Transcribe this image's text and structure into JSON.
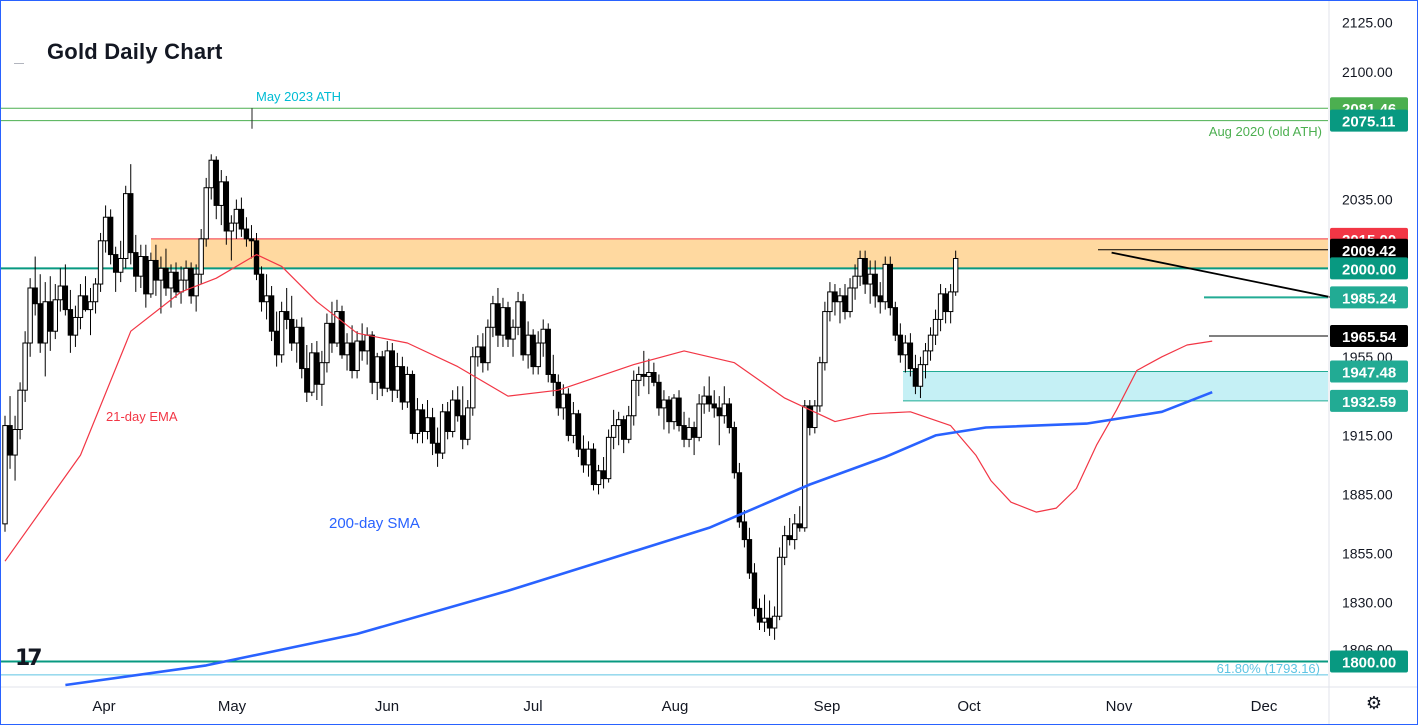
{
  "title": "Gold Daily Chart",
  "logo_text": "17",
  "settings_icon": "gear-icon",
  "chart_data": {
    "type": "candlestick",
    "ylim": [
      1787,
      2136
    ],
    "ticks": [
      {
        "value": 2125,
        "label": "2125.00"
      },
      {
        "value": 2100,
        "label": "2100.00"
      },
      {
        "value": 2035,
        "label": "2035.00"
      },
      {
        "value": 1955,
        "label": "1955.00"
      },
      {
        "value": 1915,
        "label": "1915.00"
      },
      {
        "value": 1885,
        "label": "1885.00"
      },
      {
        "value": 1855,
        "label": "1855.00"
      },
      {
        "value": 1830,
        "label": "1830.00"
      },
      {
        "value": 1806,
        "label": "1806.00"
      }
    ],
    "months": [
      "Apr",
      "May",
      "Jun",
      "Jul",
      "Aug",
      "Sep",
      "Oct",
      "Nov",
      "Dec"
    ],
    "price_labels": [
      {
        "value": 2081.46,
        "label": "2081.46",
        "bg": "#4caf50",
        "fg": "#ffffff"
      },
      {
        "value": 2075.11,
        "label": "2075.11",
        "bg": "#089981",
        "fg": "#ffffff"
      },
      {
        "value": 2015.0,
        "label": "2015.00",
        "bg": "#f23645",
        "fg": "#ffffff"
      },
      {
        "value": 2009.42,
        "label": "2009.42",
        "bg": "#000000",
        "fg": "#ffffff"
      },
      {
        "value": 2000.0,
        "label": "2000.00",
        "bg": "#089981",
        "fg": "#ffffff"
      },
      {
        "value": 1985.24,
        "label": "1985.24",
        "bg": "#22ab94",
        "fg": "#ffffff"
      },
      {
        "value": 1965.54,
        "label": "1965.54",
        "bg": "#000000",
        "fg": "#ffffff"
      },
      {
        "value": 1947.48,
        "label": "1947.48",
        "bg": "#22ab94",
        "fg": "#ffffff"
      },
      {
        "value": 1932.59,
        "label": "1932.59",
        "bg": "#22ab94",
        "fg": "#ffffff"
      },
      {
        "value": 1800.0,
        "label": "1800.00",
        "bg": "#089981",
        "fg": "#ffffff"
      }
    ],
    "annotations": [
      {
        "text": "May 2023 ATH",
        "color": "#00bcd4"
      },
      {
        "text": "Aug 2020 (old ATH)",
        "color": "#4caf50"
      },
      {
        "text": "21-day EMA",
        "color": "#f23645"
      },
      {
        "text": "200-day SMA",
        "color": "#2962ff"
      },
      {
        "text": "61.80% (1793.16)",
        "color": "#5dc4e3"
      }
    ],
    "zones": [
      {
        "from": 2000.0,
        "to": 2015.0,
        "color": "#ffcc80",
        "border": "#f23645"
      },
      {
        "from": 1932.59,
        "to": 1947.48,
        "color": "#b2ebf2",
        "border": "#22ab94"
      }
    ],
    "levels": [
      {
        "value": 2081.46,
        "color": "#4caf50"
      },
      {
        "value": 2075.11,
        "color": "#4caf50"
      },
      {
        "value": 2000.0,
        "color": "#089981"
      },
      {
        "value": 1800.0,
        "color": "#089981"
      },
      {
        "value": 1793.16,
        "color": "#5dc4e3"
      }
    ],
    "ohlc": [
      [
        1870,
        1925,
        1866,
        1920
      ],
      [
        1920,
        1935,
        1898,
        1905
      ],
      [
        1905,
        1925,
        1892,
        1918
      ],
      [
        1918,
        1942,
        1913,
        1938
      ],
      [
        1938,
        1968,
        1932,
        1962
      ],
      [
        1962,
        1995,
        1955,
        1990
      ],
      [
        1990,
        2006,
        1976,
        1982
      ],
      [
        1982,
        1997,
        1957,
        1962
      ],
      [
        1962,
        1993,
        1945,
        1983
      ],
      [
        1983,
        1996,
        1958,
        1968
      ],
      [
        1968,
        1992,
        1964,
        1984
      ],
      [
        1984,
        2000,
        1978,
        1991
      ],
      [
        1991,
        2002,
        1976,
        1979
      ],
      [
        1979,
        1989,
        1957,
        1966
      ],
      [
        1966,
        1981,
        1960,
        1975
      ],
      [
        1975,
        1992,
        1969,
        1986
      ],
      [
        1986,
        1996,
        1978,
        1979
      ],
      [
        1979,
        1990,
        1966,
        1983
      ],
      [
        1983,
        1995,
        1977,
        1992
      ],
      [
        1992,
        2018,
        1988,
        2014
      ],
      [
        2014,
        2032,
        2008,
        2026
      ],
      [
        2026,
        2030,
        2002,
        2007
      ],
      [
        2007,
        2011,
        1988,
        1998
      ],
      [
        1998,
        2014,
        1993,
        2005
      ],
      [
        2005,
        2042,
        2000,
        2038
      ],
      [
        2038,
        2053,
        2002,
        2008
      ],
      [
        2008,
        2017,
        1988,
        1996
      ],
      [
        1996,
        2012,
        1990,
        2006
      ],
      [
        2006,
        2012,
        1980,
        1987
      ],
      [
        1987,
        2008,
        1985,
        2004
      ],
      [
        2004,
        2012,
        1986,
        1994
      ],
      [
        1994,
        2006,
        1977,
        2000
      ],
      [
        2000,
        2010,
        1986,
        1990
      ],
      [
        1990,
        2002,
        1980,
        1998
      ],
      [
        1998,
        2003,
        1985,
        1988
      ],
      [
        1988,
        2001,
        1982,
        1994
      ],
      [
        1994,
        2004,
        1989,
        2000
      ],
      [
        2000,
        2003,
        1982,
        1986
      ],
      [
        1986,
        2002,
        1978,
        1997
      ],
      [
        1997,
        2020,
        1992,
        2015
      ],
      [
        2015,
        2046,
        2011,
        2041
      ],
      [
        2041,
        2058,
        2035,
        2055
      ],
      [
        2055,
        2057,
        2025,
        2032
      ],
      [
        2032,
        2050,
        2022,
        2044
      ],
      [
        2044,
        2047,
        2012,
        2019
      ],
      [
        2019,
        2027,
        2004,
        2023
      ],
      [
        2023,
        2035,
        2015,
        2030
      ],
      [
        2030,
        2036,
        2016,
        2020
      ],
      [
        2020,
        2026,
        2011,
        2015
      ],
      [
        2015,
        2022,
        2005,
        2014
      ],
      [
        2014,
        2018,
        1994,
        1997
      ],
      [
        1997,
        2001,
        1978,
        1983
      ],
      [
        1983,
        1997,
        1974,
        1986
      ],
      [
        1986,
        1991,
        1963,
        1968
      ],
      [
        1968,
        1978,
        1950,
        1956
      ],
      [
        1956,
        1983,
        1952,
        1978
      ],
      [
        1978,
        1990,
        1969,
        1974
      ],
      [
        1974,
        1986,
        1958,
        1962
      ],
      [
        1962,
        1974,
        1952,
        1970
      ],
      [
        1970,
        1975,
        1944,
        1949
      ],
      [
        1949,
        1961,
        1932,
        1937
      ],
      [
        1937,
        1962,
        1935,
        1957
      ],
      [
        1957,
        1963,
        1933,
        1941
      ],
      [
        1941,
        1958,
        1930,
        1952
      ],
      [
        1952,
        1977,
        1947,
        1972
      ],
      [
        1972,
        1983,
        1957,
        1962
      ],
      [
        1962,
        1984,
        1960,
        1978
      ],
      [
        1978,
        1981,
        1954,
        1956
      ],
      [
        1956,
        1967,
        1948,
        1962
      ],
      [
        1962,
        1971,
        1944,
        1948
      ],
      [
        1948,
        1968,
        1944,
        1963
      ],
      [
        1963,
        1972,
        1953,
        1958
      ],
      [
        1958,
        1970,
        1951,
        1966
      ],
      [
        1966,
        1968,
        1936,
        1942
      ],
      [
        1942,
        1957,
        1933,
        1955
      ],
      [
        1955,
        1958,
        1935,
        1939
      ],
      [
        1939,
        1963,
        1937,
        1958
      ],
      [
        1958,
        1962,
        1932,
        1938
      ],
      [
        1938,
        1957,
        1934,
        1950
      ],
      [
        1950,
        1955,
        1928,
        1932
      ],
      [
        1932,
        1950,
        1929,
        1946
      ],
      [
        1946,
        1948,
        1913,
        1916
      ],
      [
        1916,
        1934,
        1911,
        1928
      ],
      [
        1928,
        1931,
        1911,
        1917
      ],
      [
        1917,
        1933,
        1913,
        1924
      ],
      [
        1924,
        1929,
        1905,
        1911
      ],
      [
        1911,
        1919,
        1899,
        1906
      ],
      [
        1906,
        1931,
        1903,
        1927
      ],
      [
        1927,
        1932,
        1913,
        1917
      ],
      [
        1917,
        1938,
        1914,
        1933
      ],
      [
        1933,
        1940,
        1922,
        1925
      ],
      [
        1925,
        1940,
        1908,
        1913
      ],
      [
        1913,
        1933,
        1910,
        1929
      ],
      [
        1929,
        1960,
        1925,
        1955
      ],
      [
        1955,
        1966,
        1950,
        1960
      ],
      [
        1960,
        1967,
        1947,
        1952
      ],
      [
        1952,
        1974,
        1948,
        1970
      ],
      [
        1970,
        1986,
        1965,
        1982
      ],
      [
        1982,
        1990,
        1960,
        1966
      ],
      [
        1966,
        1985,
        1960,
        1980
      ],
      [
        1980,
        1983,
        1960,
        1964
      ],
      [
        1964,
        1974,
        1955,
        1970
      ],
      [
        1970,
        1988,
        1966,
        1983
      ],
      [
        1983,
        1987,
        1953,
        1956
      ],
      [
        1956,
        1973,
        1949,
        1966
      ],
      [
        1966,
        1969,
        1946,
        1950
      ],
      [
        1950,
        1968,
        1946,
        1962
      ],
      [
        1962,
        1974,
        1955,
        1969
      ],
      [
        1969,
        1972,
        1942,
        1946
      ],
      [
        1946,
        1956,
        1935,
        1942
      ],
      [
        1942,
        1946,
        1925,
        1929
      ],
      [
        1929,
        1941,
        1923,
        1936
      ],
      [
        1936,
        1939,
        1912,
        1915
      ],
      [
        1915,
        1932,
        1911,
        1926
      ],
      [
        1926,
        1928,
        1904,
        1908
      ],
      [
        1908,
        1915,
        1896,
        1900
      ],
      [
        1900,
        1912,
        1894,
        1908
      ],
      [
        1908,
        1911,
        1887,
        1890
      ],
      [
        1890,
        1900,
        1885,
        1897
      ],
      [
        1897,
        1904,
        1888,
        1893
      ],
      [
        1893,
        1918,
        1891,
        1914
      ],
      [
        1914,
        1928,
        1908,
        1920
      ],
      [
        1920,
        1927,
        1910,
        1923
      ],
      [
        1923,
        1925,
        1906,
        1913
      ],
      [
        1913,
        1930,
        1911,
        1925
      ],
      [
        1925,
        1948,
        1920,
        1943
      ],
      [
        1943,
        1950,
        1935,
        1946
      ],
      [
        1946,
        1958,
        1940,
        1945
      ],
      [
        1945,
        1954,
        1936,
        1947
      ],
      [
        1947,
        1952,
        1940,
        1942
      ],
      [
        1942,
        1946,
        1925,
        1929
      ],
      [
        1929,
        1938,
        1918,
        1933
      ],
      [
        1933,
        1935,
        1916,
        1922
      ],
      [
        1922,
        1936,
        1918,
        1934
      ],
      [
        1934,
        1938,
        1917,
        1920
      ],
      [
        1920,
        1927,
        1909,
        1913
      ],
      [
        1913,
        1924,
        1909,
        1919
      ],
      [
        1919,
        1922,
        1905,
        1914
      ],
      [
        1914,
        1936,
        1912,
        1931
      ],
      [
        1931,
        1940,
        1926,
        1935
      ],
      [
        1935,
        1945,
        1927,
        1931
      ],
      [
        1931,
        1938,
        1924,
        1929
      ],
      [
        1929,
        1935,
        1910,
        1925
      ],
      [
        1925,
        1940,
        1921,
        1931
      ],
      [
        1931,
        1934,
        1916,
        1919
      ],
      [
        1919,
        1922,
        1893,
        1896
      ],
      [
        1896,
        1901,
        1868,
        1871
      ],
      [
        1871,
        1877,
        1858,
        1862
      ],
      [
        1862,
        1868,
        1842,
        1845
      ],
      [
        1845,
        1850,
        1823,
        1827
      ],
      [
        1827,
        1832,
        1816,
        1820
      ],
      [
        1820,
        1834,
        1815,
        1822
      ],
      [
        1822,
        1831,
        1813,
        1817
      ],
      [
        1817,
        1828,
        1811,
        1823
      ],
      [
        1823,
        1858,
        1821,
        1853
      ],
      [
        1853,
        1869,
        1849,
        1864
      ],
      [
        1864,
        1873,
        1859,
        1862
      ],
      [
        1862,
        1875,
        1857,
        1870
      ],
      [
        1870,
        1879,
        1866,
        1868
      ],
      [
        1868,
        1933,
        1866,
        1930
      ],
      [
        1930,
        1933,
        1915,
        1919
      ],
      [
        1919,
        1933,
        1916,
        1930
      ],
      [
        1930,
        1955,
        1927,
        1952
      ],
      [
        1952,
        1983,
        1948,
        1978
      ],
      [
        1978,
        1993,
        1973,
        1988
      ],
      [
        1988,
        1992,
        1976,
        1983
      ],
      [
        1983,
        1990,
        1972,
        1986
      ],
      [
        1986,
        1992,
        1974,
        1978
      ],
      [
        1978,
        1995,
        1975,
        1990
      ],
      [
        1990,
        2002,
        1984,
        1996
      ],
      [
        1996,
        2009,
        1991,
        2005
      ],
      [
        2005,
        2009,
        1987,
        1992
      ],
      [
        1992,
        2004,
        1982,
        1997
      ],
      [
        1997,
        2004,
        1980,
        1986
      ],
      [
        1986,
        1993,
        1977,
        1983
      ],
      [
        1983,
        2006,
        1979,
        2002
      ],
      [
        2002,
        2006,
        1976,
        1980
      ],
      [
        1980,
        1983,
        1963,
        1966
      ],
      [
        1966,
        1972,
        1952,
        1956
      ],
      [
        1956,
        1966,
        1947,
        1962
      ],
      [
        1962,
        1967,
        1945,
        1949
      ],
      [
        1949,
        1956,
        1936,
        1940
      ],
      [
        1940,
        1955,
        1934,
        1951
      ],
      [
        1951,
        1962,
        1944,
        1958
      ],
      [
        1958,
        1970,
        1953,
        1966
      ],
      [
        1966,
        1979,
        1961,
        1974
      ],
      [
        1974,
        1992,
        1968,
        1987
      ],
      [
        1987,
        1990,
        1972,
        1978
      ],
      [
        1978,
        1992,
        1972,
        1988
      ],
      [
        1988,
        2009,
        1986,
        2005
      ]
    ],
    "ema21": [
      [
        0,
        1851
      ],
      [
        15,
        1905
      ],
      [
        25,
        1968
      ],
      [
        35,
        1988
      ],
      [
        42,
        1995
      ],
      [
        50,
        2007
      ],
      [
        55,
        2001
      ],
      [
        62,
        1983
      ],
      [
        70,
        1967
      ],
      [
        80,
        1962
      ],
      [
        90,
        1950
      ],
      [
        100,
        1935
      ],
      [
        110,
        1938
      ],
      [
        125,
        1951
      ],
      [
        135,
        1958
      ],
      [
        145,
        1952
      ],
      [
        155,
        1934
      ],
      [
        165,
        1922
      ],
      [
        172,
        1926
      ],
      [
        180,
        1927
      ],
      [
        188,
        1920
      ],
      [
        193,
        1905
      ],
      [
        196,
        1892
      ],
      [
        200,
        1881
      ],
      [
        205,
        1876
      ],
      [
        209,
        1878
      ],
      [
        213,
        1888
      ],
      [
        217,
        1910
      ],
      [
        221,
        1928
      ],
      [
        225,
        1948
      ],
      [
        230,
        1955
      ],
      [
        235,
        1961
      ],
      [
        240,
        1963
      ]
    ],
    "sma200": [
      [
        12,
        1788
      ],
      [
        40,
        1798
      ],
      [
        70,
        1814
      ],
      [
        100,
        1836
      ],
      [
        120,
        1852
      ],
      [
        140,
        1868
      ],
      [
        160,
        1890
      ],
      [
        175,
        1904
      ],
      [
        185,
        1915
      ],
      [
        195,
        1919
      ],
      [
        215,
        1921
      ],
      [
        230,
        1927
      ],
      [
        240,
        1937
      ]
    ],
    "trendline": [
      [
        220,
        2008
      ],
      [
        270,
        1982
      ]
    ]
  }
}
